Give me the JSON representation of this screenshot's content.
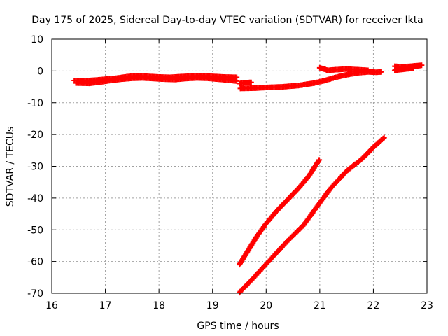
{
  "chart_data": {
    "type": "scatter",
    "title": "Day 175 of 2025, Sidereal Day-to-day VTEC variation (SDTVAR) for receiver Ikta",
    "xlabel": "GPS time / hours",
    "ylabel": "SDTVAR / TECUs",
    "xlim": [
      16,
      23
    ],
    "ylim": [
      -70,
      10
    ],
    "xticks": [
      16,
      17,
      18,
      19,
      20,
      21,
      22,
      23
    ],
    "yticks": [
      -70,
      -60,
      -50,
      -40,
      -30,
      -20,
      -10,
      0,
      10
    ],
    "grid": true,
    "marker": "plus",
    "color": "#ff0000",
    "series": [
      {
        "name": "upper-track-a",
        "points": [
          [
            16.42,
            -3.0
          ],
          [
            16.6,
            -3.1
          ],
          [
            16.8,
            -2.9
          ],
          [
            17.0,
            -2.6
          ],
          [
            17.2,
            -2.3
          ],
          [
            17.4,
            -1.8
          ],
          [
            17.6,
            -1.5
          ],
          [
            17.8,
            -1.7
          ],
          [
            18.0,
            -1.9
          ],
          [
            18.2,
            -2.0
          ],
          [
            18.4,
            -1.8
          ],
          [
            18.6,
            -1.6
          ],
          [
            18.8,
            -1.5
          ],
          [
            19.0,
            -1.7
          ],
          [
            19.2,
            -1.9
          ],
          [
            19.45,
            -2.0
          ]
        ]
      },
      {
        "name": "upper-track-b",
        "points": [
          [
            16.45,
            -3.8
          ],
          [
            16.7,
            -3.9
          ],
          [
            16.9,
            -3.5
          ],
          [
            17.1,
            -3.0
          ],
          [
            17.3,
            -2.6
          ],
          [
            17.5,
            -2.3
          ],
          [
            17.7,
            -2.2
          ],
          [
            17.9,
            -2.4
          ],
          [
            18.1,
            -2.6
          ],
          [
            18.3,
            -2.7
          ],
          [
            18.5,
            -2.4
          ],
          [
            18.7,
            -2.2
          ],
          [
            18.9,
            -2.3
          ],
          [
            19.1,
            -2.6
          ],
          [
            19.3,
            -2.9
          ],
          [
            19.45,
            -3.2
          ]
        ]
      },
      {
        "name": "mid-track",
        "points": [
          [
            19.52,
            -5.5
          ],
          [
            19.8,
            -5.4
          ],
          [
            20.0,
            -5.2
          ],
          [
            20.3,
            -5.0
          ],
          [
            20.6,
            -4.6
          ],
          [
            20.9,
            -3.8
          ],
          [
            21.1,
            -3.0
          ],
          [
            21.3,
            -2.0
          ],
          [
            21.5,
            -1.2
          ],
          [
            21.7,
            -0.6
          ],
          [
            21.9,
            -0.3
          ],
          [
            22.05,
            -0.4
          ],
          [
            22.15,
            -0.3
          ]
        ]
      },
      {
        "name": "mid-track-start",
        "points": [
          [
            19.5,
            -4.0
          ],
          [
            19.6,
            -3.7
          ],
          [
            19.72,
            -3.6
          ]
        ]
      },
      {
        "name": "arc-upper-right",
        "points": [
          [
            21.0,
            1.0
          ],
          [
            21.15,
            0.2
          ],
          [
            21.3,
            0.4
          ],
          [
            21.5,
            0.6
          ],
          [
            21.7,
            0.4
          ],
          [
            21.9,
            0.2
          ]
        ]
      },
      {
        "name": "late-segment",
        "points": [
          [
            22.4,
            1.5
          ],
          [
            22.55,
            1.3
          ],
          [
            22.7,
            1.5
          ],
          [
            22.9,
            1.8
          ],
          [
            22.4,
            0.2
          ],
          [
            22.6,
            0.6
          ],
          [
            22.75,
            0.9
          ]
        ]
      },
      {
        "name": "descending-left",
        "points": [
          [
            19.5,
            -61.0
          ],
          [
            19.7,
            -55.5
          ],
          [
            19.85,
            -51.5
          ],
          [
            20.0,
            -48.0
          ],
          [
            20.2,
            -44.0
          ],
          [
            20.4,
            -40.5
          ],
          [
            20.6,
            -37.0
          ],
          [
            20.8,
            -33.0
          ],
          [
            20.99,
            -28.0
          ]
        ]
      },
      {
        "name": "descending-right",
        "points": [
          [
            19.5,
            -69.8
          ],
          [
            19.8,
            -64.5
          ],
          [
            20.1,
            -59.0
          ],
          [
            20.4,
            -53.5
          ],
          [
            20.7,
            -48.5
          ],
          [
            21.0,
            -41.5
          ],
          [
            21.2,
            -37.0
          ],
          [
            21.5,
            -31.5
          ],
          [
            21.8,
            -27.5
          ],
          [
            22.0,
            -24.0
          ],
          [
            22.2,
            -21.0
          ]
        ]
      }
    ]
  }
}
